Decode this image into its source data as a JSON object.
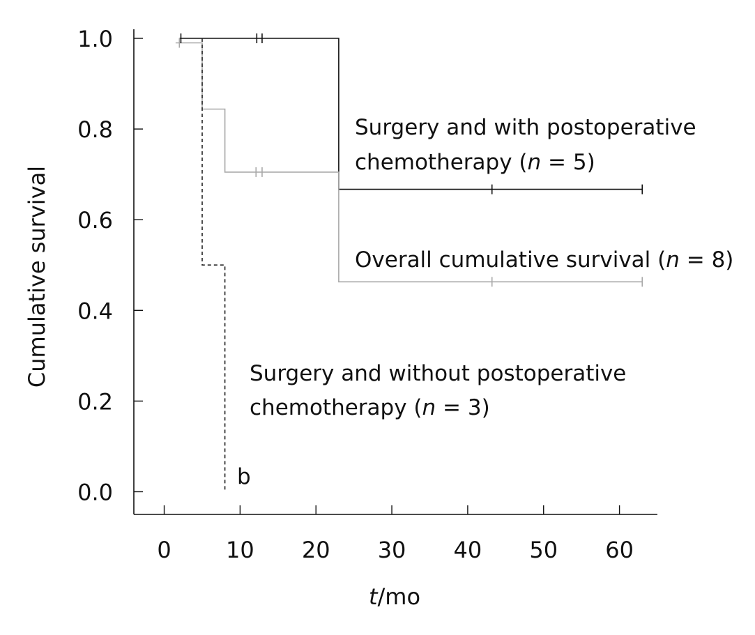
{
  "chart_data": {
    "type": "line",
    "title": "",
    "xlabel_italic": "t",
    "xlabel_rest": "/mo",
    "ylabel": "Cumulative survival",
    "xlim": [
      -4,
      65
    ],
    "ylim": [
      -0.05,
      1.02
    ],
    "x_ticks": [
      0,
      10,
      20,
      30,
      40,
      50,
      60
    ],
    "x_tick_labels": [
      "0",
      "10",
      "20",
      "30",
      "40",
      "50",
      "60"
    ],
    "y_ticks": [
      0.0,
      0.2,
      0.4,
      0.6,
      0.8,
      1.0
    ],
    "y_tick_labels": [
      "0.0",
      "0.2",
      "0.4",
      "0.6",
      "0.8",
      "1.0"
    ],
    "grid": false,
    "series": [
      {
        "key": "with_chemo",
        "color": "#111111",
        "dash": "",
        "points": [
          [
            2,
            1.0
          ],
          [
            23,
            1.0
          ],
          [
            23,
            0.667
          ],
          [
            63,
            0.667
          ]
        ],
        "censored": [
          [
            2.2,
            1.0
          ],
          [
            12.2,
            1.0
          ],
          [
            12.9,
            1.0
          ],
          [
            43.2,
            0.667
          ],
          [
            63,
            0.667
          ]
        ]
      },
      {
        "key": "overall",
        "color": "#a8a8a8",
        "dash": "",
        "points": [
          [
            1.5,
            0.99
          ],
          [
            5,
            0.99
          ],
          [
            5,
            0.844
          ],
          [
            8,
            0.844
          ],
          [
            8,
            0.705
          ],
          [
            23,
            0.705
          ],
          [
            23,
            0.463
          ],
          [
            63,
            0.463
          ]
        ],
        "censored": [
          [
            2,
            0.99
          ],
          [
            12.1,
            0.705
          ],
          [
            12.9,
            0.705
          ],
          [
            43.2,
            0.463
          ],
          [
            63,
            0.463
          ]
        ]
      },
      {
        "key": "without_chemo",
        "color": "#222222",
        "dash": "5,4",
        "points": [
          [
            5,
            1.0
          ],
          [
            5,
            0.5
          ],
          [
            8,
            0.5
          ],
          [
            8,
            0.0
          ]
        ],
        "censored": []
      }
    ],
    "annotations": [
      {
        "key": "with",
        "lines": [
          {
            "text": "Surgery and with postoperative"
          },
          {
            "pre": "chemotherapy (",
            "ital": "n",
            "post": " = 5)"
          }
        ]
      },
      {
        "key": "overall",
        "lines": [
          {
            "pre": "Overall cumulative survival (",
            "ital": "n",
            "post": " = 8)"
          }
        ]
      },
      {
        "key": "without",
        "lines": [
          {
            "text": "Surgery and without postoperative"
          },
          {
            "pre": "chemotherapy (",
            "ital": "n",
            "post": " = 3)"
          }
        ]
      }
    ],
    "panel_label": "b"
  }
}
